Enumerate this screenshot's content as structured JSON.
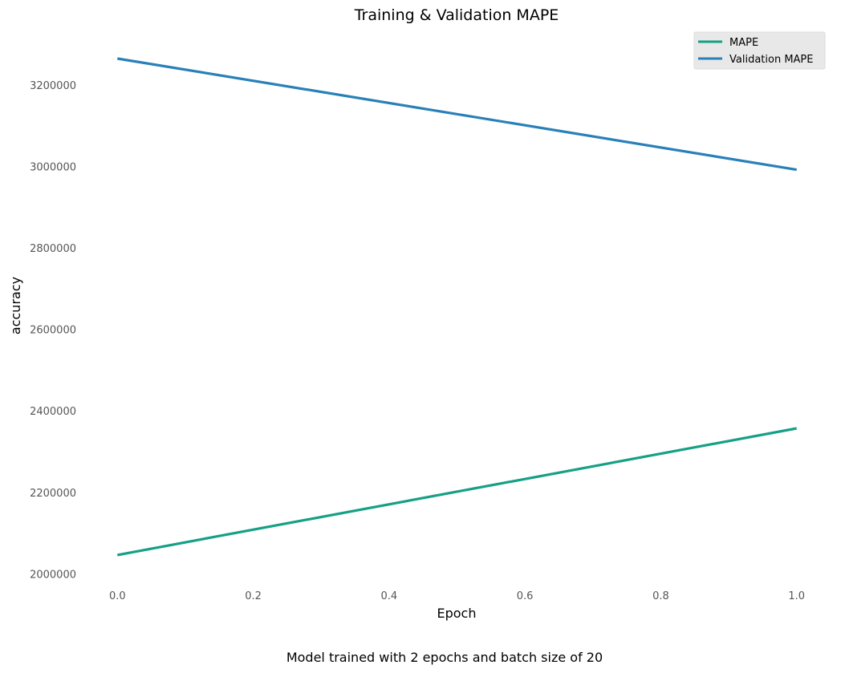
{
  "chart_data": {
    "type": "line",
    "title": "Training & Validation MAPE",
    "xlabel": "Epoch",
    "ylabel": "accuracy",
    "caption": "Model trained with 2 epochs and batch size of 20",
    "x": [
      0.0,
      1.0
    ],
    "series": [
      {
        "name": "MAPE",
        "color": "#16a085",
        "values": [
          2046000,
          2357000
        ]
      },
      {
        "name": "Validation MAPE",
        "color": "#2980b9",
        "values": [
          3265000,
          2992000
        ]
      }
    ],
    "xlim": [
      -0.05,
      1.05
    ],
    "ylim": [
      1975000,
      3330000
    ],
    "xticks": [
      0.0,
      0.2,
      0.4,
      0.6,
      0.8,
      1.0
    ],
    "xtick_labels": [
      "0.0",
      "0.2",
      "0.4",
      "0.6",
      "0.8",
      "1.0"
    ],
    "yticks": [
      2000000,
      2200000,
      2400000,
      2600000,
      2800000,
      3000000,
      3200000
    ],
    "ytick_labels": [
      "2000000",
      "2200000",
      "2400000",
      "2600000",
      "2800000",
      "3000000",
      "3200000"
    ],
    "grid": false,
    "legend_position": "top-right"
  }
}
